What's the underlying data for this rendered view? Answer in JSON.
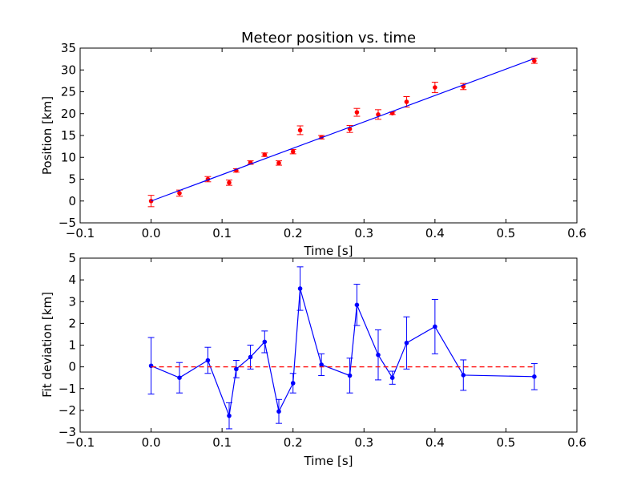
{
  "chart_data": [
    {
      "type": "scatter",
      "title": "Meteor position vs. time",
      "xlabel": "Time [s]",
      "ylabel": "Position [km]",
      "xlim": [
        -0.1,
        0.6
      ],
      "ylim": [
        -5,
        35
      ],
      "xticks": [
        -0.1,
        0.0,
        0.1,
        0.2,
        0.3,
        0.4,
        0.5,
        0.6
      ],
      "xtick_labels": [
        "−0.1",
        "0.0",
        "0.1",
        "0.2",
        "0.3",
        "0.4",
        "0.5",
        "0.6"
      ],
      "yticks": [
        -5,
        0,
        5,
        10,
        15,
        20,
        25,
        30,
        35
      ],
      "ytick_labels": [
        "−5",
        "0",
        "5",
        "10",
        "15",
        "20",
        "25",
        "30",
        "35"
      ],
      "grid": false,
      "series": [
        {
          "kind": "points-with-errorbars",
          "color": "#ff0000",
          "x": [
            0.0,
            0.04,
            0.08,
            0.11,
            0.12,
            0.14,
            0.16,
            0.18,
            0.2,
            0.21,
            0.24,
            0.28,
            0.29,
            0.32,
            0.34,
            0.36,
            0.4,
            0.44,
            0.54
          ],
          "y": [
            0.0,
            1.8,
            5.0,
            4.2,
            7.0,
            8.8,
            10.6,
            8.7,
            11.3,
            16.2,
            14.6,
            16.5,
            20.3,
            19.8,
            20.1,
            22.7,
            26.0,
            26.2,
            32.1
          ],
          "yerr": [
            1.3,
            0.7,
            0.6,
            0.6,
            0.4,
            0.4,
            0.4,
            0.5,
            0.5,
            1.0,
            0.4,
            0.8,
            0.9,
            1.1,
            0.3,
            1.2,
            1.2,
            0.7,
            0.6
          ]
        },
        {
          "kind": "fit-line",
          "color": "#0000ff",
          "x": [
            0.0,
            0.54
          ],
          "y": [
            0.0,
            32.6
          ]
        }
      ]
    },
    {
      "type": "line",
      "xlabel": "Time [s]",
      "ylabel": "Fit deviation [km]",
      "xlim": [
        -0.1,
        0.6
      ],
      "ylim": [
        -3,
        5
      ],
      "xticks": [
        -0.1,
        0.0,
        0.1,
        0.2,
        0.3,
        0.4,
        0.5,
        0.6
      ],
      "xtick_labels": [
        "−0.1",
        "0.0",
        "0.1",
        "0.2",
        "0.3",
        "0.4",
        "0.5",
        "0.6"
      ],
      "yticks": [
        -3,
        -2,
        -1,
        0,
        1,
        2,
        3,
        4,
        5
      ],
      "ytick_labels": [
        "−3",
        "−2",
        "−1",
        "0",
        "1",
        "2",
        "3",
        "4",
        "5"
      ],
      "grid": false,
      "series": [
        {
          "kind": "line-with-errorbars",
          "color": "#0000ff",
          "x": [
            0.0,
            0.04,
            0.08,
            0.11,
            0.12,
            0.14,
            0.16,
            0.18,
            0.2,
            0.21,
            0.24,
            0.28,
            0.29,
            0.32,
            0.34,
            0.36,
            0.4,
            0.44,
            0.54
          ],
          "y": [
            0.05,
            -0.5,
            0.3,
            -2.25,
            -0.1,
            0.45,
            1.15,
            -2.05,
            -0.75,
            3.6,
            0.1,
            -0.4,
            2.85,
            0.55,
            -0.5,
            1.1,
            1.85,
            -0.38,
            -0.45
          ],
          "yerr": [
            1.3,
            0.7,
            0.6,
            0.6,
            0.4,
            0.55,
            0.5,
            0.55,
            0.45,
            1.0,
            0.5,
            0.8,
            0.95,
            1.15,
            0.3,
            1.2,
            1.25,
            0.7,
            0.6
          ]
        },
        {
          "kind": "zero-line",
          "color": "#ff0000",
          "style": "dashed",
          "x": [
            0.0,
            0.54
          ],
          "y": [
            0.0,
            0.0
          ]
        }
      ]
    }
  ]
}
